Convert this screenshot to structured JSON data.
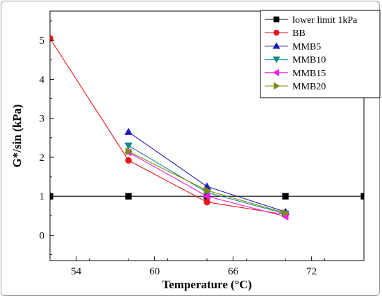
{
  "chart_data": {
    "type": "line",
    "xlabel": "Temperature (°C)",
    "ylabel": "G*/sin (kPa)",
    "xlim": [
      52,
      76
    ],
    "ylim": [
      -0.65,
      5.75
    ],
    "xticks": [
      54,
      60,
      66,
      72
    ],
    "yticks": [
      0,
      1,
      2,
      3,
      4,
      5
    ],
    "grid": false,
    "legend_position": "top-right",
    "series": [
      {
        "name": "lower limit 1kPa",
        "color": "#000000",
        "marker": "square",
        "points": [
          [
            52,
            1
          ],
          [
            58,
            1
          ],
          [
            64,
            1
          ],
          [
            70,
            1
          ],
          [
            76,
            1
          ]
        ]
      },
      {
        "name": "BB",
        "color": "#e8161b",
        "marker": "circle",
        "points": [
          [
            52,
            5.05
          ],
          [
            58,
            1.92
          ],
          [
            64,
            0.85
          ],
          [
            70,
            0.53
          ]
        ]
      },
      {
        "name": "MMB5",
        "color": "#1c1cb8",
        "marker": "triangle-up",
        "points": [
          [
            58,
            2.65
          ],
          [
            64,
            1.25
          ],
          [
            70,
            0.6
          ]
        ]
      },
      {
        "name": "MMB10",
        "color": "#0f8a86",
        "marker": "triangle-down",
        "points": [
          [
            58,
            2.3
          ],
          [
            64,
            1.1
          ],
          [
            70,
            0.55
          ]
        ]
      },
      {
        "name": "MMB15",
        "color": "#ee1fe4",
        "marker": "triangle-left",
        "points": [
          [
            58,
            2.13
          ],
          [
            64,
            1.0
          ],
          [
            70,
            0.48
          ]
        ]
      },
      {
        "name": "MMB20",
        "color": "#7f8a12",
        "marker": "triangle-right",
        "points": [
          [
            58,
            2.15
          ],
          [
            64,
            1.15
          ],
          [
            70,
            0.57
          ]
        ]
      }
    ]
  }
}
